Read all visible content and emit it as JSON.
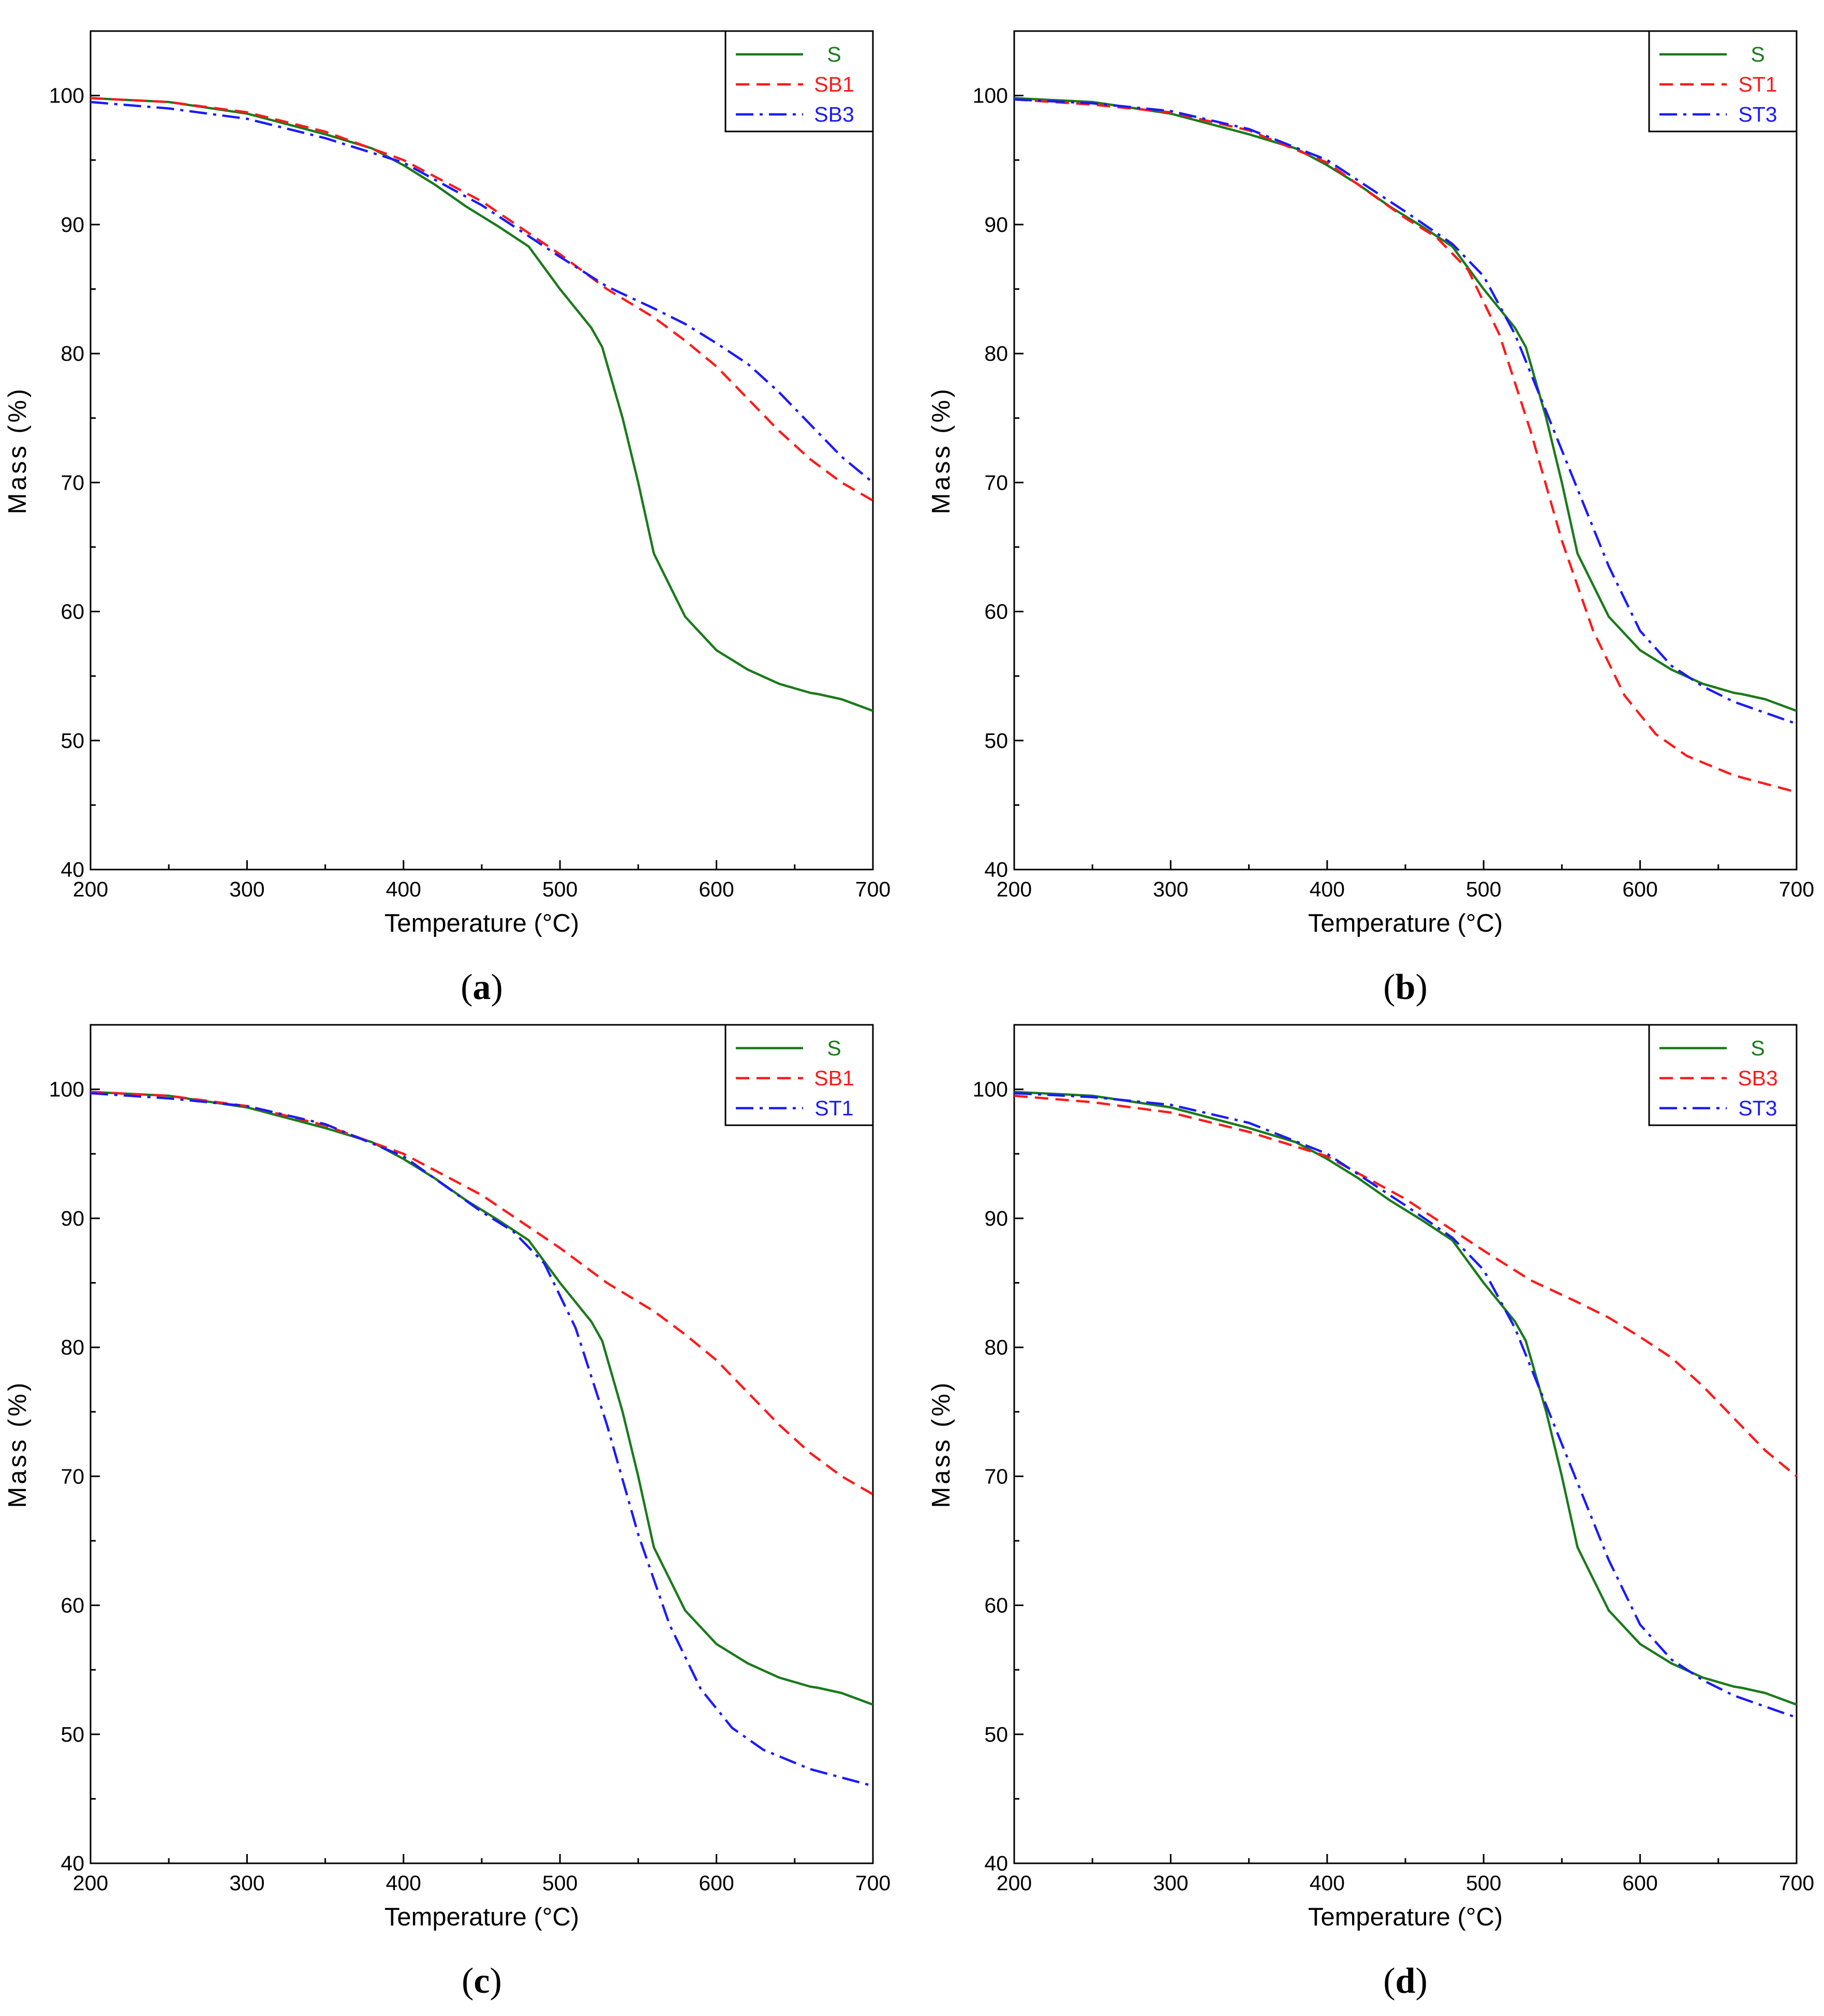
{
  "colors": {
    "green": "#1a7a1a",
    "red": "#ff1a1a",
    "blue": "#1a1aff",
    "axis": "#000000"
  },
  "chart_data": [
    {
      "type": "line",
      "panel_label": "a",
      "xlabel": "Temperature (°C)",
      "ylabel": "Mass (%)",
      "xlim": [
        200,
        700
      ],
      "ylim": [
        40,
        105
      ],
      "xticks": [
        200,
        300,
        400,
        500,
        600,
        700
      ],
      "yticks": [
        40,
        50,
        60,
        70,
        80,
        90,
        100
      ],
      "legend_position": "top-right",
      "series": [
        {
          "name": "S",
          "color": "green",
          "dash": "solid",
          "x": [
            200,
            250,
            300,
            350,
            380,
            400,
            420,
            440,
            460,
            480,
            500,
            520,
            527,
            540,
            550,
            560,
            580,
            600,
            620,
            640,
            660,
            665,
            680,
            700
          ],
          "y": [
            99.8,
            99.5,
            98.6,
            97.0,
            95.9,
            94.6,
            93.1,
            91.4,
            89.9,
            88.3,
            85.0,
            82.0,
            80.5,
            75.0,
            70.0,
            64.5,
            59.6,
            57.0,
            55.5,
            54.4,
            53.7,
            53.6,
            53.2,
            52.3
          ]
        },
        {
          "name": "SB1",
          "color": "red",
          "dash": "dash",
          "x": [
            200,
            250,
            300,
            350,
            400,
            450,
            500,
            530,
            560,
            580,
            600,
            620,
            640,
            660,
            680,
            700
          ],
          "y": [
            99.8,
            99.5,
            98.7,
            97.2,
            95.0,
            91.8,
            87.7,
            85.0,
            82.8,
            81.0,
            79.0,
            76.5,
            74.0,
            71.8,
            70.0,
            68.6
          ]
        },
        {
          "name": "SB3",
          "color": "blue",
          "dash": "dashdot",
          "x": [
            200,
            250,
            300,
            350,
            400,
            450,
            500,
            530,
            560,
            580,
            600,
            620,
            640,
            660,
            680,
            700
          ],
          "y": [
            99.5,
            99.0,
            98.2,
            96.7,
            94.8,
            91.5,
            87.5,
            85.2,
            83.5,
            82.3,
            80.8,
            79.2,
            77.0,
            74.5,
            72.0,
            70.0
          ]
        }
      ]
    },
    {
      "type": "line",
      "panel_label": "b",
      "xlabel": "Temperature (°C)",
      "ylabel": "Mass (%)",
      "xlim": [
        200,
        700
      ],
      "ylim": [
        40,
        105
      ],
      "xticks": [
        200,
        300,
        400,
        500,
        600,
        700
      ],
      "yticks": [
        40,
        50,
        60,
        70,
        80,
        90,
        100
      ],
      "legend_position": "top-right",
      "series": [
        {
          "name": "S",
          "color": "green",
          "dash": "solid",
          "x": [
            200,
            250,
            300,
            350,
            380,
            400,
            420,
            440,
            460,
            480,
            500,
            520,
            527,
            540,
            550,
            560,
            580,
            600,
            620,
            640,
            660,
            665,
            680,
            700
          ],
          "y": [
            99.8,
            99.5,
            98.6,
            97.0,
            95.9,
            94.6,
            93.1,
            91.4,
            89.9,
            88.3,
            85.0,
            82.0,
            80.5,
            75.0,
            70.0,
            64.5,
            59.6,
            57.0,
            55.5,
            54.4,
            53.7,
            53.6,
            53.2,
            52.3
          ]
        },
        {
          "name": "ST1",
          "color": "red",
          "dash": "dash",
          "x": [
            200,
            250,
            300,
            350,
            400,
            450,
            470,
            490,
            510,
            530,
            550,
            570,
            590,
            610,
            630,
            660,
            700
          ],
          "y": [
            99.7,
            99.3,
            98.7,
            97.3,
            94.8,
            90.5,
            89.0,
            86.5,
            81.5,
            74.0,
            65.5,
            58.5,
            53.5,
            50.5,
            48.8,
            47.3,
            46.0
          ]
        },
        {
          "name": "ST3",
          "color": "blue",
          "dash": "dashdot",
          "x": [
            200,
            250,
            300,
            350,
            400,
            450,
            480,
            500,
            520,
            540,
            560,
            580,
            600,
            620,
            640,
            660,
            700
          ],
          "y": [
            99.7,
            99.4,
            98.8,
            97.4,
            95.0,
            91.0,
            88.5,
            86.0,
            81.5,
            75.5,
            69.5,
            63.5,
            58.5,
            55.8,
            54.2,
            53.0,
            51.3
          ]
        }
      ]
    },
    {
      "type": "line",
      "panel_label": "c",
      "xlabel": "Temperature (°C)",
      "ylabel": "Mass (%)",
      "xlim": [
        200,
        700
      ],
      "ylim": [
        40,
        105
      ],
      "xticks": [
        200,
        300,
        400,
        500,
        600,
        700
      ],
      "yticks": [
        40,
        50,
        60,
        70,
        80,
        90,
        100
      ],
      "legend_position": "top-right",
      "series": [
        {
          "name": "S",
          "color": "green",
          "dash": "solid",
          "x": [
            200,
            250,
            300,
            350,
            380,
            400,
            420,
            440,
            460,
            480,
            500,
            520,
            527,
            540,
            550,
            560,
            580,
            600,
            620,
            640,
            660,
            665,
            680,
            700
          ],
          "y": [
            99.8,
            99.5,
            98.6,
            97.0,
            95.9,
            94.6,
            93.1,
            91.4,
            89.9,
            88.3,
            85.0,
            82.0,
            80.5,
            75.0,
            70.0,
            64.5,
            59.6,
            57.0,
            55.5,
            54.4,
            53.7,
            53.6,
            53.2,
            52.3
          ]
        },
        {
          "name": "SB1",
          "color": "red",
          "dash": "dash",
          "x": [
            200,
            250,
            300,
            350,
            400,
            450,
            500,
            530,
            560,
            580,
            600,
            620,
            640,
            660,
            680,
            700
          ],
          "y": [
            99.8,
            99.5,
            98.7,
            97.2,
            95.0,
            91.8,
            87.7,
            85.0,
            82.8,
            81.0,
            79.0,
            76.5,
            74.0,
            71.8,
            70.0,
            68.6
          ]
        },
        {
          "name": "ST1",
          "color": "blue",
          "dash": "dashdot",
          "x": [
            200,
            250,
            300,
            350,
            400,
            450,
            470,
            490,
            510,
            530,
            550,
            570,
            590,
            610,
            630,
            660,
            700
          ],
          "y": [
            99.7,
            99.3,
            98.7,
            97.3,
            94.8,
            90.5,
            89.0,
            86.5,
            81.5,
            74.0,
            65.5,
            58.5,
            53.5,
            50.5,
            48.8,
            47.3,
            46.0
          ]
        }
      ]
    },
    {
      "type": "line",
      "panel_label": "d",
      "xlabel": "Temperature (°C)",
      "ylabel": "Mass (%)",
      "xlim": [
        200,
        700
      ],
      "ylim": [
        40,
        105
      ],
      "xticks": [
        200,
        300,
        400,
        500,
        600,
        700
      ],
      "yticks": [
        40,
        50,
        60,
        70,
        80,
        90,
        100
      ],
      "legend_position": "top-right",
      "series": [
        {
          "name": "S",
          "color": "green",
          "dash": "solid",
          "x": [
            200,
            250,
            300,
            350,
            380,
            400,
            420,
            440,
            460,
            480,
            500,
            520,
            527,
            540,
            550,
            560,
            580,
            600,
            620,
            640,
            660,
            665,
            680,
            700
          ],
          "y": [
            99.8,
            99.5,
            98.6,
            97.0,
            95.9,
            94.6,
            93.1,
            91.4,
            89.9,
            88.3,
            85.0,
            82.0,
            80.5,
            75.0,
            70.0,
            64.5,
            59.6,
            57.0,
            55.5,
            54.4,
            53.7,
            53.6,
            53.2,
            52.3
          ]
        },
        {
          "name": "SB3",
          "color": "red",
          "dash": "dash",
          "x": [
            200,
            250,
            300,
            350,
            400,
            450,
            500,
            530,
            560,
            580,
            600,
            620,
            640,
            660,
            680,
            700
          ],
          "y": [
            99.5,
            99.0,
            98.2,
            96.7,
            94.8,
            91.5,
            87.5,
            85.2,
            83.5,
            82.3,
            80.8,
            79.2,
            77.0,
            74.5,
            72.0,
            70.0
          ]
        },
        {
          "name": "ST3",
          "color": "blue",
          "dash": "dashdot",
          "x": [
            200,
            250,
            300,
            350,
            400,
            450,
            480,
            500,
            520,
            540,
            560,
            580,
            600,
            620,
            640,
            660,
            700
          ],
          "y": [
            99.7,
            99.4,
            98.8,
            97.4,
            95.0,
            91.0,
            88.5,
            86.0,
            81.5,
            75.5,
            69.5,
            63.5,
            58.5,
            55.8,
            54.2,
            53.0,
            51.3
          ]
        }
      ]
    }
  ]
}
